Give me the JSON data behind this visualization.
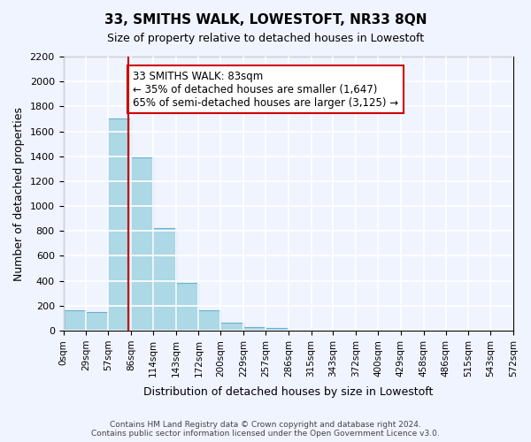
{
  "title": "33, SMITHS WALK, LOWESTOFT, NR33 8QN",
  "subtitle": "Size of property relative to detached houses in Lowestoft",
  "xlabel": "Distribution of detached houses by size in Lowestoft",
  "ylabel": "Number of detached properties",
  "bar_color": "#add8e6",
  "bar_edge_color": "#6ab0d4",
  "bin_edges": [
    0,
    29,
    57,
    86,
    114,
    143,
    172,
    200,
    229,
    257,
    286,
    315,
    343,
    372,
    400,
    429,
    458,
    486,
    515,
    543,
    572
  ],
  "bar_heights": [
    160,
    150,
    1700,
    1390,
    825,
    380,
    165,
    65,
    30,
    25,
    0,
    0,
    0,
    0,
    0,
    0,
    0,
    0,
    0,
    0
  ],
  "tick_labels": [
    "0sqm",
    "29sqm",
    "57sqm",
    "86sqm",
    "114sqm",
    "143sqm",
    "172sqm",
    "200sqm",
    "229sqm",
    "257sqm",
    "286sqm",
    "315sqm",
    "343sqm",
    "372sqm",
    "400sqm",
    "429sqm",
    "458sqm",
    "486sqm",
    "515sqm",
    "543sqm",
    "572sqm"
  ],
  "vline_x": 83,
  "vline_color": "#cc0000",
  "annotation_text": "33 SMITHS WALK: 83sqm\n← 35% of detached houses are smaller (1,647)\n65% of semi-detached houses are larger (3,125) →",
  "annotation_box_color": "#ffffff",
  "annotation_border_color": "#cc0000",
  "ylim": [
    0,
    2200
  ],
  "yticks": [
    0,
    200,
    400,
    600,
    800,
    1000,
    1200,
    1400,
    1600,
    1800,
    2000,
    2200
  ],
  "footnote": "Contains HM Land Registry data © Crown copyright and database right 2024.\nContains public sector information licensed under the Open Government Licence v3.0.",
  "background_color": "#f0f4ff",
  "plot_bg_color": "#f0f4ff",
  "grid_color": "#ffffff"
}
